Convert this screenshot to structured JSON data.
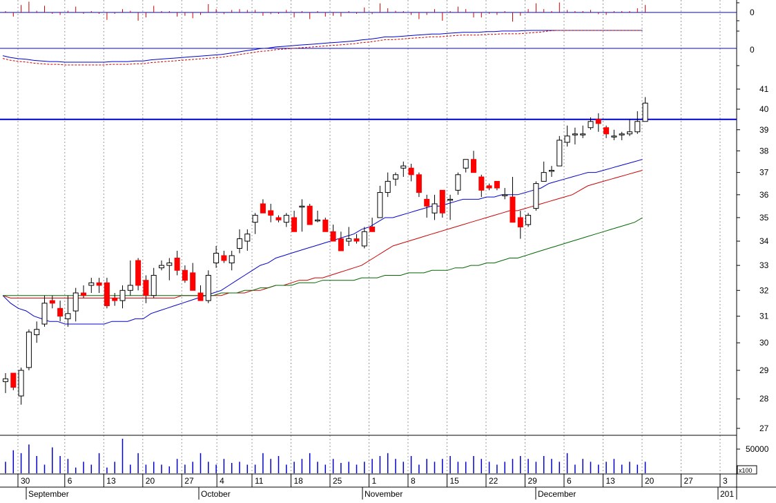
{
  "chart_data": {
    "type": "candlestick",
    "title": "",
    "price_axis": {
      "ticks": [
        27,
        28,
        29,
        30,
        31,
        32,
        33,
        34,
        35,
        36,
        37,
        38,
        39,
        40,
        41
      ],
      "ylim": [
        26.7,
        41.6
      ],
      "scale": "log"
    },
    "indicator_axis": {
      "ticks": [
        "0",
        "0"
      ]
    },
    "volume_axis": {
      "ticks": [
        "50000"
      ],
      "unit_label": "x100"
    },
    "date_axis": {
      "day_ticks": [
        "30",
        "6",
        "13",
        "20",
        "27",
        "4",
        "11",
        "18",
        "25",
        "1",
        "8",
        "15",
        "22",
        "29",
        "6",
        "13",
        "20",
        "27",
        "3"
      ],
      "month_labels": [
        "September",
        "October",
        "November",
        "December",
        "201"
      ]
    },
    "horizontal_line": {
      "value": 39.5,
      "color": "#0000cc"
    },
    "colors": {
      "up": "#ffffff",
      "down": "#ff0000",
      "up_border": "#000000",
      "ma_short": "#0000cc",
      "ma_mid": "#cc0000",
      "ma_long": "#006600",
      "volume": "#0000cc",
      "grid": "#999999"
    },
    "series": [
      {
        "name": "candles",
        "values": [
          [
            28.6,
            28.9,
            28.2,
            28.7
          ],
          [
            28.9,
            28.9,
            28.3,
            28.4
          ],
          [
            28.1,
            29.1,
            27.8,
            29.0
          ],
          [
            29.1,
            30.5,
            29.0,
            30.4
          ],
          [
            30.3,
            30.8,
            30.0,
            30.5
          ],
          [
            30.7,
            31.8,
            30.6,
            31.5
          ],
          [
            31.6,
            31.8,
            31.3,
            31.5
          ],
          [
            31.3,
            31.6,
            30.8,
            31.0
          ],
          [
            30.9,
            31.8,
            30.6,
            31.1
          ],
          [
            31.2,
            32.1,
            30.8,
            31.9
          ],
          [
            31.9,
            32.2,
            31.7,
            31.8
          ],
          [
            32.2,
            32.5,
            31.9,
            32.3
          ],
          [
            32.3,
            32.5,
            31.9,
            32.2
          ],
          [
            32.3,
            32.5,
            31.3,
            31.4
          ],
          [
            31.7,
            31.9,
            31.4,
            31.6
          ],
          [
            31.6,
            32.2,
            31.3,
            32.0
          ],
          [
            32.0,
            33.2,
            31.8,
            32.2
          ],
          [
            33.2,
            33.3,
            32.0,
            32.2
          ],
          [
            32.4,
            32.6,
            31.5,
            31.8
          ],
          [
            31.8,
            32.9,
            31.7,
            32.6
          ],
          [
            32.9,
            33.2,
            32.8,
            33.0
          ],
          [
            33.0,
            33.3,
            32.4,
            33.1
          ],
          [
            33.3,
            33.6,
            32.6,
            32.8
          ],
          [
            32.8,
            33.0,
            32.3,
            32.4
          ],
          [
            32.7,
            33.1,
            32.0,
            32.0
          ],
          [
            31.9,
            32.2,
            31.6,
            31.6
          ],
          [
            31.6,
            32.8,
            31.5,
            32.6
          ],
          [
            33.1,
            33.8,
            32.9,
            33.5
          ],
          [
            33.4,
            33.6,
            33.1,
            33.2
          ],
          [
            33.1,
            33.6,
            32.8,
            33.4
          ],
          [
            33.7,
            34.5,
            33.5,
            34.1
          ],
          [
            34.0,
            34.5,
            33.6,
            34.3
          ],
          [
            34.8,
            35.2,
            34.3,
            35.1
          ],
          [
            35.6,
            35.8,
            35.2,
            35.2
          ],
          [
            35.3,
            35.6,
            34.8,
            35.1
          ],
          [
            35.0,
            35.1,
            34.8,
            34.9
          ],
          [
            34.8,
            35.2,
            34.6,
            35.1
          ],
          [
            35.0,
            35.3,
            34.4,
            34.4
          ],
          [
            35.5,
            35.8,
            34.4,
            35.5
          ],
          [
            35.5,
            35.6,
            34.7,
            34.7
          ],
          [
            34.9,
            35.3,
            34.8,
            34.9
          ],
          [
            34.9,
            35.0,
            34.4,
            34.4
          ],
          [
            34.4,
            34.7,
            34.0,
            34.0
          ],
          [
            34.1,
            34.4,
            33.6,
            33.6
          ],
          [
            34.0,
            34.6,
            33.8,
            34.1
          ],
          [
            34.1,
            34.3,
            33.9,
            34.0
          ],
          [
            33.8,
            34.6,
            33.7,
            34.4
          ],
          [
            34.6,
            35.0,
            34.4,
            34.4
          ],
          [
            35.0,
            36.4,
            35.0,
            36.1
          ],
          [
            36.1,
            37.0,
            35.9,
            36.6
          ],
          [
            36.7,
            37.0,
            36.4,
            36.9
          ],
          [
            37.2,
            37.5,
            36.8,
            37.3
          ],
          [
            37.2,
            37.4,
            36.6,
            36.9
          ],
          [
            36.9,
            37.0,
            35.9,
            36.1
          ],
          [
            35.8,
            36.0,
            35.0,
            35.5
          ],
          [
            35.2,
            36.0,
            34.9,
            35.6
          ],
          [
            36.2,
            36.2,
            35.0,
            35.2
          ],
          [
            35.8,
            36.0,
            34.9,
            35.8
          ],
          [
            36.2,
            37.0,
            36.0,
            36.9
          ],
          [
            37.2,
            37.6,
            37.0,
            37.6
          ],
          [
            37.6,
            38.0,
            37.0,
            37.0
          ],
          [
            36.8,
            36.9,
            35.9,
            36.2
          ],
          [
            36.4,
            36.5,
            36.2,
            36.3
          ],
          [
            36.6,
            36.6,
            36.2,
            36.3
          ],
          [
            36.0,
            36.3,
            35.8,
            36.0
          ],
          [
            35.9,
            36.8,
            34.8,
            34.8
          ],
          [
            35.0,
            35.3,
            34.1,
            34.6
          ],
          [
            34.7,
            35.2,
            34.6,
            35.1
          ],
          [
            35.4,
            36.6,
            35.3,
            36.5
          ],
          [
            36.6,
            37.5,
            36.6,
            37.0
          ],
          [
            37.1,
            37.3,
            36.8,
            37.1
          ],
          [
            37.3,
            38.7,
            37.3,
            38.5
          ],
          [
            38.4,
            39.2,
            38.2,
            38.7
          ],
          [
            38.8,
            39.1,
            38.3,
            38.8
          ],
          [
            38.8,
            39.2,
            38.6,
            38.8
          ],
          [
            39.1,
            39.6,
            39.0,
            39.4
          ],
          [
            39.5,
            39.8,
            38.9,
            39.3
          ],
          [
            39.1,
            39.2,
            38.6,
            38.8
          ],
          [
            38.7,
            39.0,
            38.5,
            38.7
          ],
          [
            38.8,
            38.9,
            38.5,
            38.8
          ],
          [
            38.8,
            39.5,
            38.7,
            38.9
          ],
          [
            38.9,
            39.9,
            38.8,
            39.4
          ],
          [
            39.4,
            40.6,
            39.4,
            40.3
          ]
        ]
      },
      {
        "name": "ma_short",
        "values": [
          31.8,
          31.5,
          31.3,
          31.2,
          31.0,
          30.9,
          30.8,
          30.8,
          30.7,
          30.7,
          30.7,
          30.7,
          30.7,
          30.7,
          30.8,
          30.8,
          30.8,
          30.9,
          30.9,
          31.1,
          31.2,
          31.3,
          31.4,
          31.5,
          31.6,
          31.7,
          31.8,
          31.9,
          32.0,
          32.2,
          32.4,
          32.6,
          32.8,
          33.0,
          33.1,
          33.3,
          33.4,
          33.5,
          33.6,
          33.7,
          33.8,
          33.9,
          34.0,
          34.1,
          34.2,
          34.3,
          34.5,
          34.6,
          34.8,
          35.0,
          35.0,
          35.1,
          35.2,
          35.3,
          35.4,
          35.5,
          35.5,
          35.6,
          35.7,
          35.8,
          35.8,
          35.8,
          35.9,
          35.9,
          36.0,
          36.0,
          36.0,
          36.1,
          36.2,
          36.3,
          36.5,
          36.6,
          36.7,
          36.8,
          36.9,
          37.0,
          37.0,
          37.1,
          37.2,
          37.3,
          37.4,
          37.5,
          37.6
        ]
      },
      {
        "name": "ma_mid",
        "values": [
          31.8,
          31.7,
          31.7,
          31.7,
          31.7,
          31.7,
          31.7,
          31.7,
          31.7,
          31.7,
          31.7,
          31.7,
          31.7,
          31.7,
          31.7,
          31.7,
          31.7,
          31.7,
          31.7,
          31.7,
          31.7,
          31.7,
          31.7,
          31.8,
          31.8,
          31.8,
          31.8,
          31.8,
          31.8,
          31.9,
          31.9,
          31.9,
          32.0,
          32.0,
          32.1,
          32.2,
          32.2,
          32.3,
          32.4,
          32.4,
          32.5,
          32.5,
          32.6,
          32.7,
          32.8,
          32.9,
          33.0,
          33.2,
          33.4,
          33.6,
          33.8,
          33.9,
          34.0,
          34.1,
          34.2,
          34.3,
          34.4,
          34.5,
          34.6,
          34.7,
          34.8,
          34.9,
          35.0,
          35.1,
          35.2,
          35.3,
          35.3,
          35.4,
          35.5,
          35.6,
          35.7,
          35.8,
          35.9,
          36.0,
          36.2,
          36.4,
          36.5,
          36.6,
          36.7,
          36.8,
          36.9,
          37.0,
          37.1
        ]
      },
      {
        "name": "ma_long",
        "values": [
          31.8,
          31.8,
          31.8,
          31.8,
          31.8,
          31.8,
          31.8,
          31.8,
          31.8,
          31.8,
          31.8,
          31.8,
          31.8,
          31.8,
          31.8,
          31.8,
          31.8,
          31.8,
          31.8,
          31.8,
          31.8,
          31.8,
          31.8,
          31.8,
          31.8,
          31.8,
          31.8,
          31.8,
          31.9,
          31.9,
          31.9,
          32.0,
          32.0,
          32.1,
          32.1,
          32.2,
          32.2,
          32.2,
          32.3,
          32.3,
          32.3,
          32.4,
          32.4,
          32.4,
          32.4,
          32.4,
          32.5,
          32.5,
          32.5,
          32.6,
          32.6,
          32.6,
          32.7,
          32.7,
          32.7,
          32.8,
          32.8,
          32.8,
          32.9,
          32.9,
          33.0,
          33.0,
          33.1,
          33.1,
          33.2,
          33.3,
          33.3,
          33.4,
          33.5,
          33.6,
          33.7,
          33.8,
          33.9,
          34.0,
          34.1,
          34.2,
          34.3,
          34.4,
          34.5,
          34.6,
          34.7,
          34.8,
          35.0
        ]
      },
      {
        "name": "volume",
        "values": [
          20,
          40,
          35,
          50,
          30,
          15,
          45,
          30,
          25,
          10,
          20,
          15,
          35,
          10,
          20,
          60,
          15,
          35,
          15,
          20,
          15,
          12,
          25,
          15,
          20,
          35,
          20,
          15,
          25,
          18,
          20,
          15,
          15,
          35,
          25,
          30,
          15,
          20,
          25,
          35,
          20,
          15,
          25,
          18,
          20,
          15,
          20,
          25,
          30,
          35,
          25,
          20,
          30,
          15,
          25,
          20,
          25,
          30,
          20,
          20,
          30,
          25,
          20,
          15,
          20,
          25,
          30,
          25,
          20,
          30,
          25,
          20,
          35,
          15,
          25,
          20,
          15,
          20,
          25,
          15,
          20,
          15,
          20
        ]
      }
    ]
  }
}
